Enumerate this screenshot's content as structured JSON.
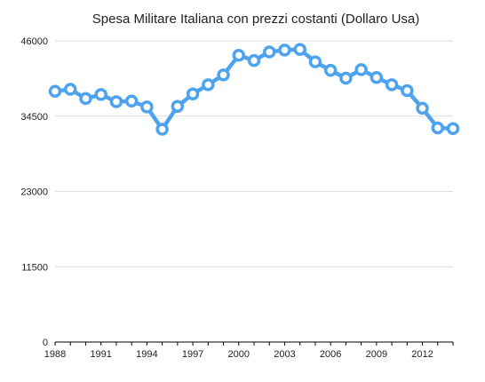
{
  "chart_data": {
    "type": "line",
    "title": "Spesa Militare Italiana con prezzi costanti (Dollaro Usa)",
    "xlabel": "",
    "ylabel": "",
    "ylim": [
      0,
      46000
    ],
    "xlim": [
      1988,
      2014
    ],
    "yticks": [
      0,
      11500,
      23000,
      34500,
      46000
    ],
    "yticklabels": [
      "0",
      "11500",
      "23000",
      "34500",
      "46000"
    ],
    "xticks": [
      1988,
      1991,
      1994,
      1997,
      2000,
      2003,
      2006,
      2009,
      2012
    ],
    "xticklabels": [
      "1988",
      "1991",
      "1994",
      "1997",
      "2000",
      "2003",
      "2006",
      "2009",
      "2012"
    ],
    "grid": true,
    "legend": "none",
    "series": [
      {
        "x": [
          1988,
          1989,
          1990,
          1991,
          1992,
          1993,
          1994,
          1995,
          1996,
          1997,
          1998,
          1999,
          2000,
          2001,
          2002,
          2003,
          2004,
          2005,
          2006,
          2007,
          2008,
          2009,
          2010,
          2011,
          2012,
          2013,
          2014
        ],
        "values": [
          38300,
          38600,
          37200,
          37800,
          36700,
          36800,
          35900,
          32500,
          36000,
          37900,
          39300,
          40800,
          43800,
          43000,
          44300,
          44600,
          44700,
          42800,
          41500,
          40300,
          41600,
          40400,
          39300,
          38400,
          35700,
          32700,
          32600
        ]
      }
    ],
    "colors": {
      "line": "#4ea3ee",
      "marker_fill": "#ffffff",
      "grid": "#dddddd",
      "axis": "#000000"
    }
  }
}
